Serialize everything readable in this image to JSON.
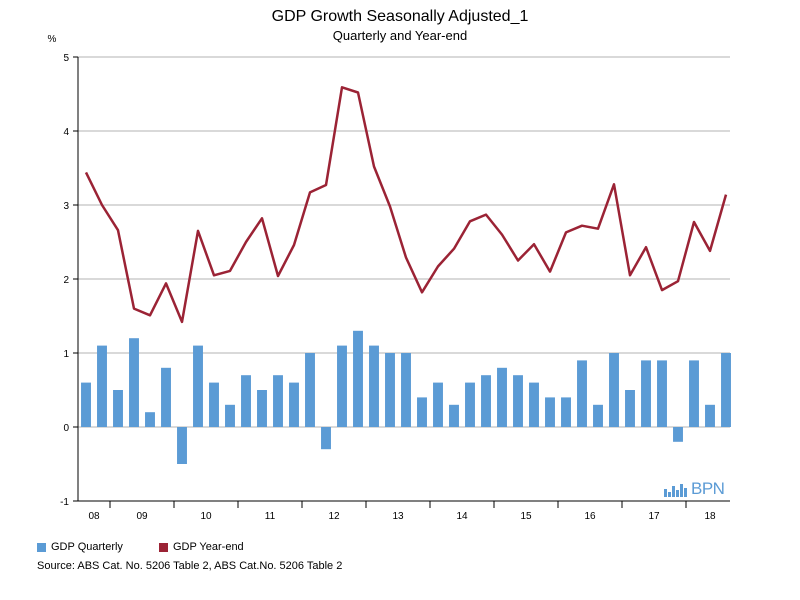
{
  "chart_data": {
    "type": "bar+line",
    "title": "GDP Growth Seasonally Adjusted_1",
    "subtitle": "Quarterly and Year-end",
    "ylabel": "%",
    "ylim": [
      -1,
      5
    ],
    "yticks": [
      -1,
      0,
      1,
      2,
      3,
      4,
      5
    ],
    "grid": true,
    "x_tick_labels": [
      "08",
      "09",
      "10",
      "11",
      "12",
      "13",
      "14",
      "15",
      "16",
      "17",
      "18"
    ],
    "quarters_per_year": 4,
    "first_year_start_index": 2,
    "series": [
      {
        "name": "GDP Quarterly",
        "type": "bar",
        "color": "#5b9bd5",
        "values": [
          0.6,
          1.1,
          0.5,
          1.2,
          0.2,
          0.8,
          -0.5,
          1.1,
          0.6,
          0.3,
          0.7,
          0.5,
          0.7,
          0.6,
          1.0,
          -0.3,
          1.1,
          1.3,
          1.1,
          1.0,
          1.0,
          0.4,
          0.6,
          0.3,
          0.6,
          0.7,
          0.8,
          0.7,
          0.6,
          0.4,
          0.4,
          0.9,
          0.3,
          1.0,
          0.5,
          0.9,
          0.9,
          -0.2,
          0.9,
          0.3,
          1.0
        ]
      },
      {
        "name": "GDP Year-end",
        "type": "line",
        "color": "#9b2335",
        "values": [
          3.44,
          3.0,
          2.66,
          1.6,
          1.51,
          1.94,
          1.42,
          2.65,
          2.05,
          2.11,
          2.5,
          2.82,
          2.04,
          2.46,
          3.17,
          3.27,
          4.59,
          4.52,
          3.52,
          2.98,
          2.29,
          1.82,
          2.17,
          2.41,
          2.78,
          2.87,
          2.6,
          2.25,
          2.47,
          2.1,
          2.63,
          2.72,
          2.68,
          3.28,
          2.05,
          2.43,
          1.85,
          1.97,
          2.77,
          2.38,
          3.14
        ]
      }
    ]
  },
  "legend": {
    "quarterly_label": "GDP Quarterly",
    "yearend_label": "GDP Year-end"
  },
  "source": "Source: ABS Cat. No. 5206 Table 2, ABS Cat.No. 5206 Table 2",
  "logo": {
    "text": "BPN",
    "color": "#5b9bd5"
  }
}
